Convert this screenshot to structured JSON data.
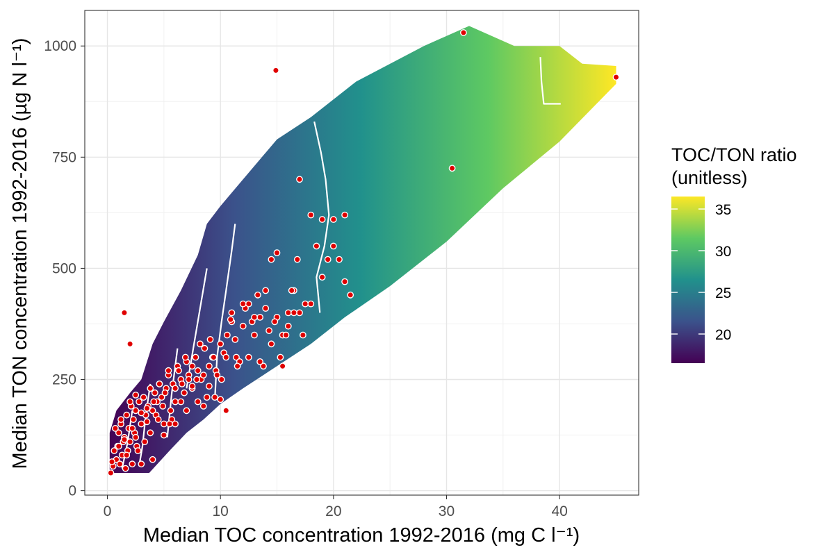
{
  "chart_data": {
    "type": "heatmap",
    "title": "",
    "xlabel": "Median TOC concentration 1992-2016 (mg C l⁻¹)",
    "ylabel": "Median TON concentration 1992-2016 (µg N l⁻¹)",
    "xlim": [
      -2,
      47
    ],
    "ylim": [
      -10,
      1080
    ],
    "xticks": [
      0,
      10,
      20,
      30,
      40
    ],
    "yticks": [
      0,
      250,
      500,
      750,
      1000
    ],
    "grid": true,
    "legend": {
      "title_line1": "TOC/TON ratio",
      "title_line2": "(unitless)",
      "ticks": [
        20,
        25,
        30,
        35
      ],
      "range": [
        16.5,
        36.5
      ],
      "colors": [
        "#440154",
        "#3b528b",
        "#21918c",
        "#5ec962",
        "#fde725"
      ],
      "placement": "right"
    },
    "surface_region": {
      "lower_edge": [
        [
          0.2,
          40
        ],
        [
          3.7,
          40
        ],
        [
          5.5,
          90
        ],
        [
          7,
          130
        ],
        [
          8.5,
          160
        ],
        [
          10,
          195
        ],
        [
          12,
          230
        ],
        [
          15,
          280
        ],
        [
          18,
          330
        ],
        [
          21,
          390
        ],
        [
          25,
          460
        ],
        [
          30,
          560
        ],
        [
          35,
          680
        ],
        [
          40,
          785
        ],
        [
          45,
          915
        ],
        [
          45,
          955
        ]
      ],
      "upper_edge": [
        [
          45,
          955
        ],
        [
          42,
          960
        ],
        [
          40,
          1000
        ],
        [
          36,
          1000
        ],
        [
          32,
          1045
        ],
        [
          28,
          1000
        ],
        [
          22,
          920
        ],
        [
          18,
          840
        ],
        [
          15,
          790
        ],
        [
          12,
          700
        ],
        [
          10,
          640
        ],
        [
          8.8,
          600
        ],
        [
          8,
          530
        ],
        [
          6.5,
          450
        ],
        [
          5,
          380
        ],
        [
          4,
          330
        ],
        [
          3,
          250
        ],
        [
          2,
          220
        ],
        [
          0.8,
          180
        ],
        [
          0.2,
          130
        ]
      ]
    },
    "contours": [
      [
        [
          1.3,
          50
        ],
        [
          1.8,
          110
        ],
        [
          2.2,
          180
        ]
      ],
      [
        [
          2.8,
          55
        ],
        [
          3.1,
          100
        ],
        [
          3.4,
          170
        ],
        [
          3.8,
          240
        ]
      ],
      [
        [
          5.3,
          120
        ],
        [
          5.7,
          220
        ],
        [
          6.2,
          320
        ]
      ],
      [
        [
          7.0,
          230
        ],
        [
          7.6,
          320
        ],
        [
          8.2,
          410
        ],
        [
          8.8,
          500
        ]
      ],
      [
        [
          9.5,
          205
        ],
        [
          9.7,
          300
        ],
        [
          10.1,
          380
        ],
        [
          10.5,
          450
        ],
        [
          11.0,
          540
        ],
        [
          11.3,
          600
        ]
      ],
      [
        [
          18.8,
          400
        ],
        [
          18.5,
          480
        ],
        [
          19.2,
          550
        ],
        [
          19.6,
          620
        ],
        [
          19.3,
          700
        ],
        [
          18.9,
          760
        ],
        [
          18.3,
          830
        ]
      ],
      [
        [
          38.3,
          975
        ],
        [
          38.4,
          920
        ],
        [
          38.6,
          870
        ],
        [
          40.1,
          870
        ]
      ]
    ],
    "points": {
      "color": "#e00000",
      "x": [
        0.3,
        0.5,
        0.6,
        0.8,
        0.9,
        1.0,
        1.1,
        1.2,
        1.3,
        1.4,
        1.5,
        1.6,
        1.7,
        1.8,
        1.9,
        2.0,
        2.1,
        2.2,
        2.3,
        2.4,
        2.5,
        2.6,
        2.8,
        3.0,
        3.2,
        3.4,
        3.6,
        3.8,
        4.0,
        4.2,
        4.4,
        4.6,
        4.8,
        5.0,
        5.2,
        5.4,
        5.6,
        5.8,
        6.0,
        6.2,
        6.5,
        6.8,
        7.0,
        7.2,
        7.5,
        7.8,
        8.0,
        8.3,
        8.6,
        9.0,
        9.3,
        9.6,
        10.0,
        10.3,
        10.6,
        11.0,
        11.4,
        12.0,
        12.5,
        13.0,
        13.5,
        14.0,
        14.5,
        15.0,
        15.5,
        16.0,
        16.5,
        17.0,
        17.5,
        18.0,
        18.5,
        19.0,
        19.5,
        20.0,
        20.5,
        21.0,
        21.5,
        0.4,
        0.7,
        1.0,
        1.2,
        1.5,
        1.7,
        2.0,
        2.2,
        2.5,
        2.7,
        3.0,
        3.3,
        3.5,
        3.8,
        4.1,
        4.3,
        4.6,
        4.9,
        5.1,
        5.4,
        5.7,
        6.0,
        6.3,
        6.6,
        6.9,
        7.2,
        7.5,
        7.9,
        8.2,
        8.5,
        8.8,
        9.1,
        9.4,
        9.7,
        10.1,
        10.5,
        10.9,
        11.3,
        11.7,
        12.2,
        12.8,
        13.3,
        13.8,
        14.3,
        14.8,
        15.3,
        15.8,
        16.3,
        16.8,
        17.3,
        1.5,
        2.5,
        3.5,
        4.5,
        5.5,
        6.5,
        7.5,
        8.5,
        9.5,
        10.5,
        11.5,
        12.5,
        13.5,
        14.5,
        15.5,
        16.5,
        2.0,
        3.0,
        4.0,
        5.0,
        6.0,
        7.0,
        8.0,
        9.0,
        10.0,
        11.0,
        12.0,
        13.0,
        14.0,
        15.0,
        16.0,
        17.0,
        18.0,
        19.0,
        20.0,
        21.0,
        30.5,
        31.5,
        45.0,
        14.9
      ],
      "y": [
        40,
        55,
        90,
        70,
        100,
        130,
        60,
        150,
        80,
        110,
        120,
        50,
        170,
        90,
        140,
        110,
        190,
        60,
        160,
        130,
        180,
        100,
        200,
        150,
        210,
        170,
        190,
        230,
        180,
        220,
        200,
        240,
        210,
        150,
        230,
        260,
        180,
        240,
        200,
        280,
        250,
        220,
        290,
        260,
        230,
        300,
        270,
        250,
        320,
        280,
        300,
        270,
        330,
        310,
        350,
        380,
        300,
        370,
        420,
        350,
        390,
        410,
        330,
        390,
        350,
        400,
        450,
        400,
        420,
        420,
        550,
        480,
        520,
        610,
        520,
        620,
        440,
        65,
        140,
        100,
        160,
        115,
        80,
        200,
        140,
        120,
        90,
        175,
        110,
        155,
        130,
        200,
        170,
        240,
        190,
        220,
        270,
        160,
        230,
        270,
        240,
        300,
        250,
        280,
        250,
        330,
        260,
        210,
        340,
        300,
        260,
        250,
        300,
        385,
        340,
        290,
        410,
        380,
        440,
        280,
        360,
        380,
        300,
        350,
        450,
        520,
        350,
        400,
        215,
        185,
        160,
        150,
        200,
        235,
        190,
        210,
        180,
        280,
        300,
        290,
        520,
        280,
        400,
        330,
        60,
        70,
        125,
        150,
        180,
        200,
        235,
        205,
        400,
        420,
        390,
        450,
        535,
        370,
        700,
        620,
        610,
        550,
        470,
        725,
        1030,
        930,
        945,
        540
      ]
    }
  }
}
